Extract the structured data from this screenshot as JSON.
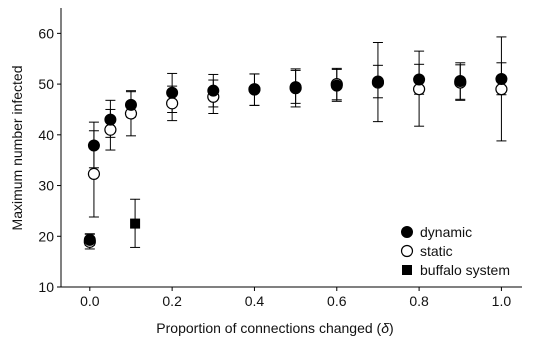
{
  "chart_data": {
    "type": "scatter",
    "xlabel": "Proportion of connections changed (",
    "xlabel_symbol": "δ",
    "xlabel_close": ")",
    "ylabel": "Maximum number infected",
    "xlim": [
      -0.07,
      1.05
    ],
    "ylim": [
      10,
      65
    ],
    "x_ticks": [
      0.0,
      0.2,
      0.4,
      0.6,
      0.8,
      1.0
    ],
    "x_tick_labels": [
      "0.0",
      "0.2",
      "0.4",
      "0.6",
      "0.8",
      "1.0"
    ],
    "y_ticks": [
      10,
      20,
      30,
      40,
      50,
      60
    ],
    "y_tick_labels": [
      "10",
      "20",
      "30",
      "40",
      "50",
      "60"
    ],
    "grid": false,
    "legend_position": "bottom-right",
    "series": [
      {
        "name": "dynamic",
        "marker": "filled-circle",
        "color": "#000000",
        "points": [
          {
            "x": 0.0,
            "y": 19.3,
            "lo": 18.2,
            "hi": 20.5
          },
          {
            "x": 0.01,
            "y": 37.9,
            "lo": 33.5,
            "hi": 42.5
          },
          {
            "x": 0.05,
            "y": 43.0,
            "lo": 39.5,
            "hi": 46.8
          },
          {
            "x": 0.1,
            "y": 45.9,
            "lo": 43.5,
            "hi": 48.5
          },
          {
            "x": 0.2,
            "y": 48.3,
            "lo": 44.4,
            "hi": 52.1
          },
          {
            "x": 0.3,
            "y": 48.7,
            "lo": 45.5,
            "hi": 51.9
          },
          {
            "x": 0.4,
            "y": 48.9,
            "lo": 45.8,
            "hi": 52.0
          },
          {
            "x": 0.5,
            "y": 49.4,
            "lo": 46.2,
            "hi": 52.7
          },
          {
            "x": 0.6,
            "y": 49.7,
            "lo": 46.6,
            "hi": 52.9
          },
          {
            "x": 0.7,
            "y": 50.5,
            "lo": 47.3,
            "hi": 53.7
          },
          {
            "x": 0.8,
            "y": 50.9,
            "lo": 48.0,
            "hi": 53.9
          },
          {
            "x": 0.9,
            "y": 50.6,
            "lo": 47.0,
            "hi": 54.2
          },
          {
            "x": 1.0,
            "y": 51.0,
            "lo": 47.9,
            "hi": 54.2
          }
        ]
      },
      {
        "name": "static",
        "marker": "open-circle",
        "color": "#000000",
        "points": [
          {
            "x": 0.0,
            "y": 18.9,
            "lo": 17.5,
            "hi": 20.4
          },
          {
            "x": 0.01,
            "y": 32.3,
            "lo": 23.8,
            "hi": 40.8
          },
          {
            "x": 0.05,
            "y": 41.0,
            "lo": 37.0,
            "hi": 45.0
          },
          {
            "x": 0.1,
            "y": 44.2,
            "lo": 39.8,
            "hi": 48.7
          },
          {
            "x": 0.2,
            "y": 46.2,
            "lo": 42.8,
            "hi": 49.6
          },
          {
            "x": 0.3,
            "y": 47.5,
            "lo": 44.2,
            "hi": 50.8
          },
          {
            "x": 0.4,
            "y": 49.0,
            "lo": 45.8,
            "hi": 52.0
          },
          {
            "x": 0.5,
            "y": 49.2,
            "lo": 45.5,
            "hi": 53.0
          },
          {
            "x": 0.6,
            "y": 50.0,
            "lo": 46.9,
            "hi": 53.1
          },
          {
            "x": 0.7,
            "y": 50.3,
            "lo": 42.6,
            "hi": 58.2
          },
          {
            "x": 0.8,
            "y": 49.0,
            "lo": 41.7,
            "hi": 56.5
          },
          {
            "x": 0.9,
            "y": 50.3,
            "lo": 46.8,
            "hi": 53.8
          },
          {
            "x": 1.0,
            "y": 49.0,
            "lo": 38.8,
            "hi": 59.3
          }
        ]
      },
      {
        "name": "buffalo system",
        "marker": "filled-square",
        "color": "#000000",
        "points": [
          {
            "x": 0.11,
            "y": 22.5,
            "lo": 17.8,
            "hi": 27.3
          }
        ]
      }
    ]
  }
}
